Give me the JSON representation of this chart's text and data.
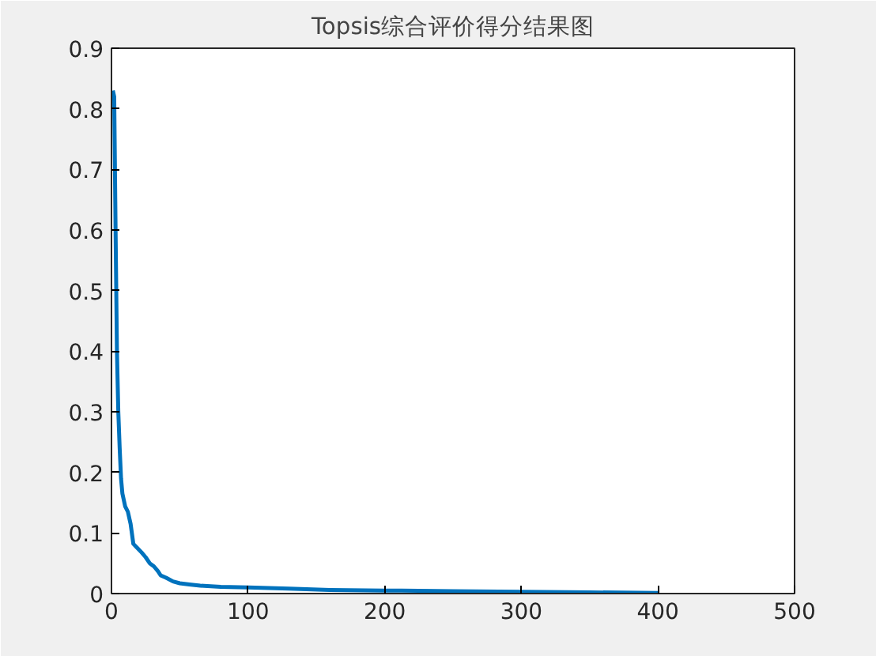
{
  "chart_data": {
    "type": "line",
    "title": "Topsis综合评价得分结果图",
    "x": [
      1,
      2,
      3,
      4,
      5,
      6,
      7,
      8,
      10,
      12,
      14,
      16,
      19,
      22,
      25,
      28,
      31,
      34,
      36,
      40,
      45,
      50,
      57,
      65,
      80,
      100,
      130,
      160,
      200,
      250,
      300,
      350,
      400
    ],
    "series": [
      {
        "color": "#0072bd",
        "values": [
          0.83,
          0.82,
          0.6,
          0.4,
          0.3,
          0.24,
          0.19,
          0.165,
          0.144,
          0.135,
          0.115,
          0.082,
          0.075,
          0.068,
          0.06,
          0.05,
          0.045,
          0.037,
          0.03,
          0.026,
          0.02,
          0.017,
          0.015,
          0.013,
          0.011,
          0.01,
          0.008,
          0.006,
          0.005,
          0.004,
          0.003,
          0.002,
          0.001
        ]
      }
    ],
    "xlim": [
      0,
      500
    ],
    "xticks": [
      0,
      100,
      200,
      300,
      400,
      500
    ],
    "ylim": [
      0,
      0.9
    ],
    "yticks": [
      0,
      0.1,
      0.2,
      0.3,
      0.4,
      0.5,
      0.6,
      0.7,
      0.8,
      0.9
    ],
    "grid": false
  }
}
